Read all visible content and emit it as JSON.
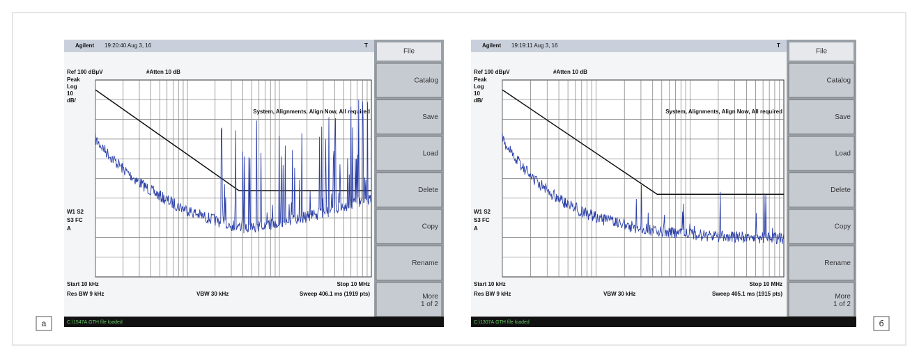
{
  "panels": [
    {
      "label": "a",
      "screen": {
        "brand": "Agilent",
        "time": "19:20:40 Aug 3, 16",
        "flag": "T",
        "ref": "Ref 100 dBμV",
        "atten": "#Atten 10 dB",
        "mode": [
          "Peak",
          "Log",
          "10",
          "dB/"
        ],
        "message": "System, Alignments, Align Now, All required",
        "trace_info": [
          "W1 S2",
          "S3 FC",
          "A"
        ],
        "start": "Start 10 kHz",
        "stop": "Stop 10 MHz",
        "rbw": "Res BW 9 kHz",
        "vbw": "VBW 30 kHz",
        "sweep": "Sweep 406.1 ms (1919 pts)",
        "status": "C:\\1547A.GTH file loaded",
        "menu_title": "File",
        "softkeys": [
          "Catalog",
          "Save",
          "Load",
          "Delete",
          "Copy",
          "Rename",
          "More 1 of 2"
        ]
      }
    },
    {
      "label": "б",
      "screen": {
        "brand": "Agilent",
        "time": "19:19:11 Aug 3, 16",
        "flag": "T",
        "ref": "Ref 100 dBμV",
        "atten": "#Atten 10 dB",
        "mode": [
          "Peak",
          "Log",
          "10",
          "dB/"
        ],
        "message": "System, Alignments, Align Now, All required",
        "trace_info": [
          "W1 S2",
          "S3 FC",
          "A"
        ],
        "start": "Start 10 kHz",
        "stop": "Stop 10 MHz",
        "rbw": "Res BW 9 kHz",
        "vbw": "VBW 30 kHz",
        "sweep": "Sweep 405.1 ms (1915 pts)",
        "status": "C:\\1307A.GTH file loaded",
        "menu_title": "File",
        "softkeys": [
          "Catalog",
          "Save",
          "Load",
          "Delete",
          "Copy",
          "Rename",
          "More 1 of 2"
        ]
      }
    }
  ]
}
